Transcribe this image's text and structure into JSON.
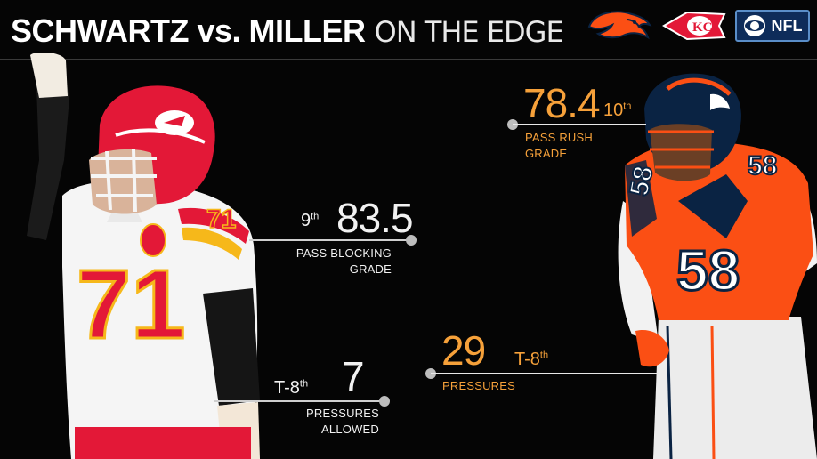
{
  "header": {
    "title_bold": "SCHWARTZ vs. MILLER",
    "title_light": "ON THE EDGE",
    "logos": [
      {
        "name": "broncos-logo",
        "icon": "bronco-horse-head",
        "color": "#fb4f14"
      },
      {
        "name": "chiefs-logo",
        "icon": "arrowhead-kc",
        "color": "#e31837"
      },
      {
        "name": "cbs-nfl-logo",
        "icon": "cbs-eye",
        "text": "NFL",
        "color": "#0e2c5a"
      }
    ]
  },
  "players": {
    "left": {
      "name": "Schwartz",
      "jersey": "71",
      "team_color": "#e31837"
    },
    "right": {
      "name": "Miller",
      "jersey": "58",
      "team_color": "#fb4f14"
    }
  },
  "stats": {
    "pass_blocking": {
      "rank": "9",
      "rank_suffix": "th",
      "value": "83.5",
      "label_line1": "PASS BLOCKING",
      "label_line2": "GRADE"
    },
    "pressures_allowed": {
      "rank": "T-8",
      "rank_suffix": "th",
      "value": "7",
      "label_line1": "PRESSURES",
      "label_line2": "ALLOWED"
    },
    "pass_rush": {
      "value": "78.4",
      "rank": "10",
      "rank_suffix": "th",
      "label_line1": "PASS RUSH",
      "label_line2": "GRADE"
    },
    "pressures": {
      "value": "29",
      "rank": "T-8",
      "rank_suffix": "th",
      "label_line1": "PRESSURES"
    }
  },
  "colors": {
    "accent_orange": "#f6a13a",
    "text_white": "#f2f2f2",
    "background": "#050505"
  }
}
